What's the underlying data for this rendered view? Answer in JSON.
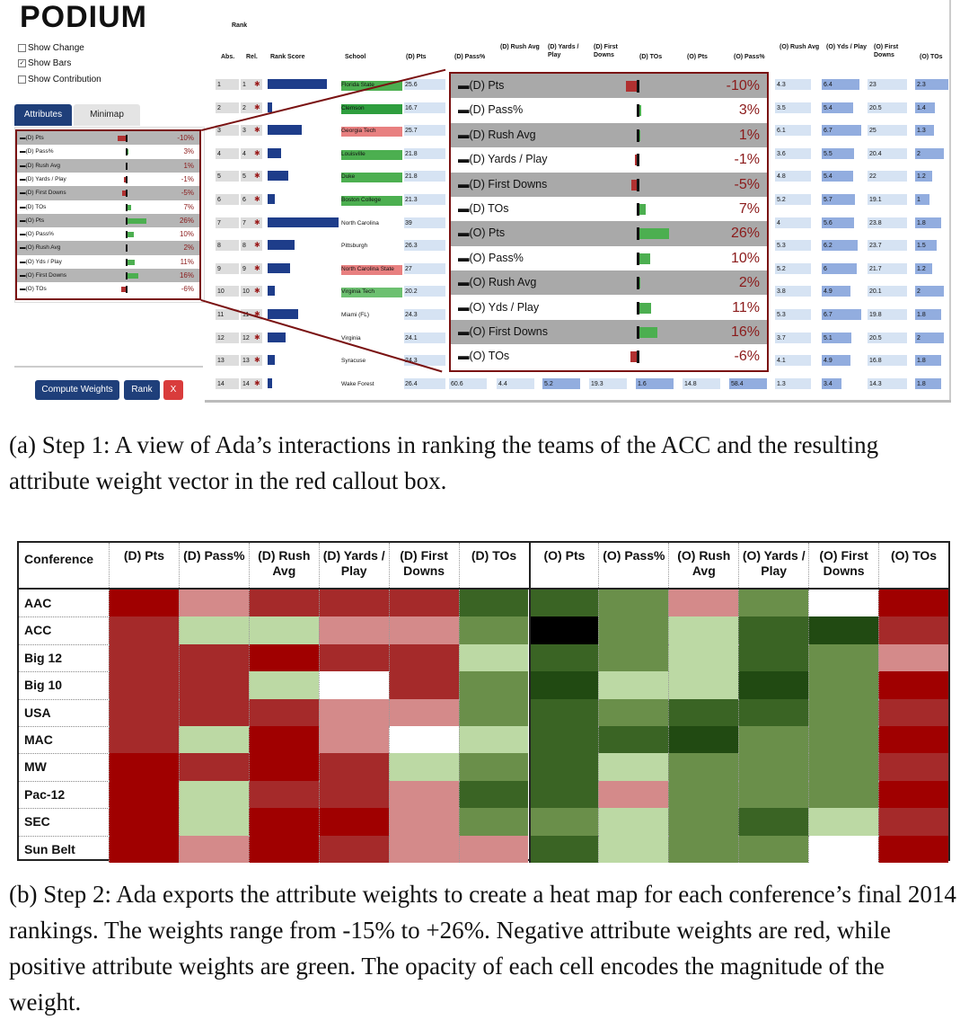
{
  "app": {
    "logo": "PODIUM"
  },
  "options": [
    {
      "label": "Show Change",
      "checked": false
    },
    {
      "label": "Show Bars",
      "checked": true
    },
    {
      "label": "Show Contribution",
      "checked": false
    }
  ],
  "tabs": [
    "Attributes",
    "Minimap"
  ],
  "buttons": {
    "compute": "Compute Weights",
    "rank": "Rank",
    "close": "X"
  },
  "table": {
    "rank_header": "Rank",
    "headers": [
      "Abs.",
      "Rel.",
      "Rank Score",
      "School",
      "(D) Pts",
      "(D) Pass%",
      "(D) Rush Avg",
      "(D) Yards / Play",
      "(D) First Downs",
      "(D) TOs",
      "(O) Pts",
      "(O) Pass%",
      "(O) Rush Avg",
      "(O) Yds / Play",
      "(O) First Downs",
      "(O) TOs"
    ],
    "rows": [
      {
        "abs": "1",
        "rel": "1",
        "score": 1.0,
        "school": "Florida State",
        "school_color": "#4caf50",
        "dpts": "25.6",
        "orush": "4.3",
        "oyds": "6.4",
        "ofd": "23",
        "otos": "2.3"
      },
      {
        "abs": "2",
        "rel": "2",
        "score": 0.07,
        "school": "Clemson",
        "school_color": "#2e9e3e",
        "dpts": "16.7",
        "orush": "3.5",
        "oyds": "5.4",
        "ofd": "20.5",
        "otos": "1.4"
      },
      {
        "abs": "3",
        "rel": "3",
        "score": 0.58,
        "school": "Georgia Tech",
        "school_color": "#e88080",
        "dpts": "25.7",
        "orush": "6.1",
        "oyds": "6.7",
        "ofd": "25",
        "otos": "1.3"
      },
      {
        "abs": "4",
        "rel": "4",
        "score": 0.22,
        "school": "Louisville",
        "school_color": "#4caf50",
        "dpts": "21.8",
        "orush": "3.6",
        "oyds": "5.5",
        "ofd": "20.4",
        "otos": "2"
      },
      {
        "abs": "5",
        "rel": "5",
        "score": 0.35,
        "school": "Duke",
        "school_color": "#4caf50",
        "dpts": "21.8",
        "orush": "4.8",
        "oyds": "5.4",
        "ofd": "22",
        "otos": "1.2"
      },
      {
        "abs": "6",
        "rel": "6",
        "score": 0.12,
        "school": "Boston College",
        "school_color": "#4caf50",
        "dpts": "21.3",
        "orush": "5.2",
        "oyds": "5.7",
        "ofd": "19.1",
        "otos": "1"
      },
      {
        "abs": "7",
        "rel": "7",
        "score": 1.2,
        "school": "North Carolina",
        "school_color": "",
        "dpts": "39",
        "orush": "4",
        "oyds": "5.6",
        "ofd": "23.8",
        "otos": "1.8"
      },
      {
        "abs": "8",
        "rel": "8",
        "score": 0.45,
        "school": "Pittsburgh",
        "school_color": "",
        "dpts": "26.3",
        "orush": "5.3",
        "oyds": "6.2",
        "ofd": "23.7",
        "otos": "1.5"
      },
      {
        "abs": "9",
        "rel": "9",
        "score": 0.38,
        "school": "North Carolina State",
        "school_color": "#e88080",
        "dpts": "27",
        "orush": "5.2",
        "oyds": "6",
        "ofd": "21.7",
        "otos": "1.2"
      },
      {
        "abs": "10",
        "rel": "10",
        "score": 0.12,
        "school": "Virginia Tech",
        "school_color": "#6cc070",
        "dpts": "20.2",
        "orush": "3.8",
        "oyds": "4.9",
        "ofd": "20.1",
        "otos": "2"
      },
      {
        "abs": "11",
        "rel": "11",
        "score": 0.52,
        "school": "Miami (FL)",
        "school_color": "",
        "dpts": "24.3",
        "orush": "5.3",
        "oyds": "6.7",
        "ofd": "19.8",
        "otos": "1.8"
      },
      {
        "abs": "12",
        "rel": "12",
        "score": 0.3,
        "school": "Virginia",
        "school_color": "",
        "dpts": "24.1",
        "orush": "3.7",
        "oyds": "5.1",
        "ofd": "20.5",
        "otos": "2"
      },
      {
        "abs": "13",
        "rel": "13",
        "score": 0.12,
        "school": "Syracuse",
        "school_color": "",
        "dpts": "24.3",
        "orush": "4.1",
        "oyds": "4.9",
        "ofd": "16.8",
        "otos": "1.8"
      },
      {
        "abs": "14",
        "rel": "14",
        "score": 0.08,
        "school": "Wake Forest",
        "school_color": "",
        "dpts": "26.4",
        "dpass": "60.6",
        "drush": "4.4",
        "dypp": "5.2",
        "dfd": "19.3",
        "dtos": "1.6",
        "opts": "14.8",
        "opass": "58.4",
        "orush": "1.3",
        "oyds": "3.4",
        "ofd": "14.3",
        "otos": "1.8"
      }
    ]
  },
  "weights": [
    {
      "name": "(D) Pts",
      "pct": "-10%",
      "value": -10,
      "shade": "dark"
    },
    {
      "name": "(D) Pass%",
      "pct": "3%",
      "value": 3,
      "shade": "light"
    },
    {
      "name": "(D) Rush Avg",
      "pct": "1%",
      "value": 1,
      "shade": "dark"
    },
    {
      "name": "(D) Yards / Play",
      "pct": "-1%",
      "value": -1,
      "shade": "light"
    },
    {
      "name": "(D) First Downs",
      "pct": "-5%",
      "value": -5,
      "shade": "dark"
    },
    {
      "name": "(D) TOs",
      "pct": "7%",
      "value": 7,
      "shade": "light"
    },
    {
      "name": "(O) Pts",
      "pct": "26%",
      "value": 26,
      "shade": "dark"
    },
    {
      "name": "(O) Pass%",
      "pct": "10%",
      "value": 10,
      "shade": "light"
    },
    {
      "name": "(O) Rush Avg",
      "pct": "2%",
      "value": 2,
      "shade": "dark"
    },
    {
      "name": "(O) Yds / Play",
      "pct": "11%",
      "value": 11,
      "shade": "light"
    },
    {
      "name": "(O) First Downs",
      "pct": "16%",
      "value": 16,
      "shade": "dark"
    },
    {
      "name": "(O) TOs",
      "pct": "-6%",
      "value": -6,
      "shade": "light"
    }
  ],
  "weights_small_names": [
    "(D) Pts",
    "(D) Pass%",
    "(D) Rush Avg",
    "(D) Yards / Play",
    "(D) First Downs",
    "(D) TOs",
    "(O) Pts",
    "(O) Pass%",
    "(O) Rush Avg",
    "(O) Yds / Play",
    "(O) First Downs",
    "(O) TOs"
  ],
  "caption_a": "(a) Step 1: A view of Ada’s interactions in ranking the teams of the ACC and the resulting attribute weight vector in the red callout box.",
  "heatmap": {
    "corner": "Conference",
    "columns": [
      "(D) Pts",
      "(D) Pass%",
      "(D) Rush Avg",
      "(D) Yards / Play",
      "(D) First Downs",
      "(D) TOs",
      "(O) Pts",
      "(O) Pass%",
      "(O) Rush Avg",
      "(O) Yards / Play",
      "(O) First Downs",
      "(O) TOs"
    ],
    "rows": [
      {
        "label": "AAC",
        "cells": [
          -4,
          -1,
          -3,
          -3,
          -3,
          3,
          3,
          2,
          -1,
          2,
          0,
          -4
        ]
      },
      {
        "label": "ACC",
        "cells": [
          -3,
          1,
          1,
          -1,
          -1,
          2,
          5,
          2,
          1,
          3,
          4,
          -3
        ]
      },
      {
        "label": "Big 12",
        "cells": [
          -3,
          -3,
          -4,
          -3,
          -3,
          1,
          3,
          2,
          1,
          3,
          2,
          -1
        ]
      },
      {
        "label": "Big 10",
        "cells": [
          -3,
          -3,
          1,
          0,
          -3,
          2,
          4,
          1,
          1,
          4,
          2,
          -4
        ]
      },
      {
        "label": "USA",
        "cells": [
          -3,
          -3,
          -3,
          -1,
          -1,
          2,
          3,
          2,
          3,
          3,
          2,
          -3
        ]
      },
      {
        "label": "MAC",
        "cells": [
          -3,
          1,
          -4,
          -1,
          0,
          1,
          3,
          3,
          4,
          2,
          2,
          -4
        ]
      },
      {
        "label": "MW",
        "cells": [
          -4,
          -3,
          -4,
          -3,
          1,
          2,
          3,
          1,
          2,
          2,
          2,
          -3
        ]
      },
      {
        "label": "Pac-12",
        "cells": [
          -4,
          1,
          -3,
          -3,
          -1,
          3,
          3,
          -1,
          2,
          2,
          2,
          -4
        ]
      },
      {
        "label": "SEC",
        "cells": [
          -4,
          1,
          -4,
          -4,
          -1,
          2,
          2,
          1,
          2,
          3,
          1,
          -3
        ]
      },
      {
        "label": "Sun Belt",
        "cells": [
          -4,
          -1,
          -4,
          -3,
          -1,
          -1,
          3,
          1,
          2,
          2,
          0,
          -4
        ]
      }
    ]
  },
  "caption_b": "(b) Step 2: Ada exports the attribute weights to create a heat map for each conference’s final 2014 rankings. The weights range from -15% to +26%. Negative attribute weights are red, while positive attribute weights are green. The opacity of each cell encodes the magnitude of the weight.",
  "colors": {
    "navy": "#1f3f7a",
    "callout": "#7a1212",
    "red": "#a00000",
    "green": "#2f6b20"
  }
}
